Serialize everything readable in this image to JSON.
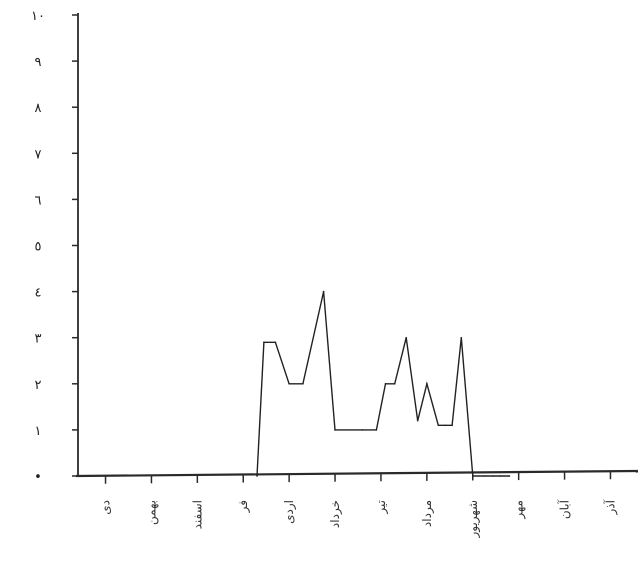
{
  "chart_data": {
    "type": "line",
    "title": "",
    "xlabel": "",
    "ylabel": "",
    "ylim": [
      0,
      10
    ],
    "y_ticks": [
      0,
      1,
      2,
      3,
      4,
      5,
      6,
      7,
      8,
      9,
      10
    ],
    "y_tick_labels": [
      "•",
      "١",
      "٢",
      "٣",
      "٤",
      "٥",
      "٦",
      "٧",
      "٨",
      "٩",
      "١٠"
    ],
    "months": [
      "دی",
      "بهمن",
      "اسفند",
      "فر",
      "اردی",
      "خرداد",
      "تیر",
      "مرداد",
      "شهریور",
      "مهر",
      "آبان",
      "آذر"
    ],
    "x_range": [
      0.4,
      12.6
    ],
    "grid": false,
    "series": [
      {
        "color": "#222222",
        "x": [
          4.3,
          4.45,
          4.7,
          5.0,
          5.3,
          5.75,
          6.0,
          6.6,
          6.9,
          7.1,
          7.3,
          7.55,
          7.8,
          8.0,
          8.25,
          8.4,
          8.55,
          8.75,
          9.0,
          9.25,
          9.45,
          9.6,
          9.8
        ],
        "values": [
          0,
          2.9,
          2.9,
          2.0,
          2.0,
          4.0,
          1.0,
          1.0,
          1.0,
          2.0,
          2.0,
          3.0,
          1.2,
          2.0,
          1.1,
          1.1,
          1.1,
          3.0,
          0.0,
          0.0,
          0.0,
          0.0,
          0.0
        ]
      }
    ]
  }
}
